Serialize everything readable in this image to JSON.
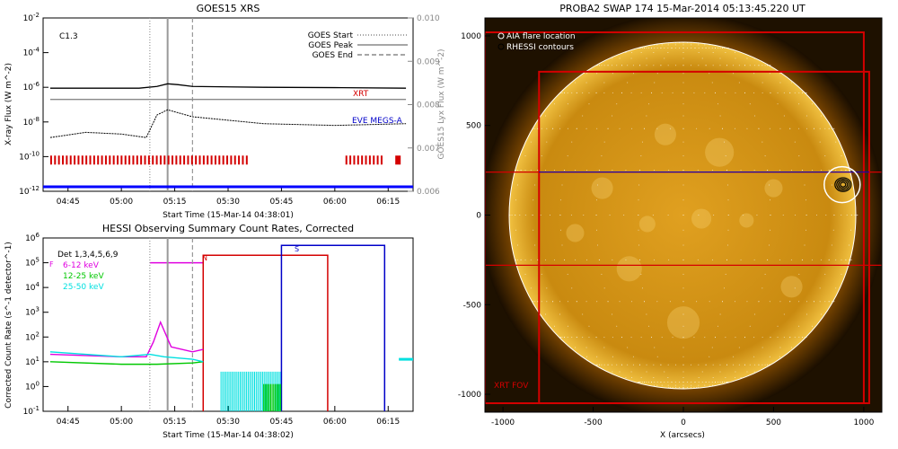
{
  "chart_data": [
    {
      "type": "line",
      "title": "GOES15 XRS",
      "xlabel": "Start Time (15-Mar-14 04:38:01)",
      "ylabel": "X-ray Flux (W m^-2)",
      "y2label": "GOES15 Lyx Flux (W m^-2)",
      "xticks": [
        "04:45",
        "05:00",
        "05:15",
        "05:30",
        "05:45",
        "06:00",
        "06:15"
      ],
      "yticks": [
        "10^-12",
        "10^-10",
        "10^-8",
        "10^-6",
        "10^-4",
        "10^-2"
      ],
      "y2ticks": [
        "0.006",
        "0.007",
        "0.008",
        "0.009",
        "0.010"
      ],
      "ylim_log10": [
        -12,
        -2
      ],
      "y2lim": [
        0.006,
        0.01
      ],
      "annotation": "C1.3",
      "legend": [
        {
          "label": "GOES Start",
          "style": "dotted"
        },
        {
          "label": "GOES Peak",
          "style": "solid"
        },
        {
          "label": "GOES End",
          "style": "dashed"
        }
      ],
      "legend_position": "top-right",
      "event_lines_time": [
        "05:08",
        "05:13",
        "05:20"
      ],
      "series_labels": [
        {
          "name": "XRT",
          "color": "#d40000"
        },
        {
          "name": "EVE MEGS-A",
          "color": "#0000c8"
        }
      ],
      "series": [
        {
          "name": "goes-long",
          "color": "#000000",
          "x": [
            "04:40",
            "05:05",
            "05:10",
            "05:13",
            "05:16",
            "05:20",
            "05:40",
            "06:00",
            "06:20"
          ],
          "log10_y": [
            -6.05,
            -6.05,
            -5.95,
            -5.8,
            -5.85,
            -5.95,
            -6.0,
            -6.02,
            -6.05
          ]
        },
        {
          "name": "lyman-alpha",
          "color": "#888888",
          "x": [
            "04:40",
            "06:20"
          ],
          "log10_y": [
            -6.7,
            -6.7
          ]
        },
        {
          "name": "goes-short",
          "color": "#000000",
          "x": [
            "04:40",
            "04:50",
            "05:00",
            "05:07",
            "05:10",
            "05:13",
            "05:20",
            "05:40",
            "06:00",
            "06:20"
          ],
          "log10_y": [
            -8.9,
            -8.6,
            -8.7,
            -8.9,
            -7.6,
            -7.3,
            -7.7,
            -8.1,
            -8.2,
            -8.1
          ]
        }
      ],
      "rhessi_coverage_bars_color": "#d40000",
      "baseline_color": "#0000ff"
    },
    {
      "type": "line",
      "title": "HESSI Observing Summary Count Rates, Corrected",
      "xlabel": "Start Time (15-Mar-14 04:38:02)",
      "ylabel": "Corrected Count Rate (s^-1 detector^-1)",
      "xticks": [
        "04:45",
        "05:00",
        "05:15",
        "05:30",
        "05:45",
        "06:00",
        "06:15"
      ],
      "yticks": [
        "10^-1",
        "10^0",
        "10^1",
        "10^2",
        "10^3",
        "10^4",
        "10^5",
        "10^6"
      ],
      "ylim_log10": [
        -1,
        6
      ],
      "legend_title": "Det 1,3,4,5,6,9",
      "legend_position": "top-left",
      "series": [
        {
          "name": "6-12 keV",
          "color": "#e000e0",
          "x": [
            "04:40",
            "05:00",
            "05:07",
            "05:09",
            "05:11",
            "05:14",
            "05:20",
            "05:23"
          ],
          "log10_y": [
            1.3,
            1.2,
            1.2,
            1.8,
            2.6,
            1.6,
            1.4,
            1.5
          ]
        },
        {
          "name": "12-25 keV",
          "color": "#00c800",
          "x": [
            "04:40",
            "05:00",
            "05:10",
            "05:20",
            "05:23"
          ],
          "log10_y": [
            1.0,
            0.9,
            0.9,
            0.95,
            1.0
          ]
        },
        {
          "name": "25-50 keV",
          "color": "#00e0e0",
          "x": [
            "04:40",
            "05:00",
            "05:08",
            "05:12",
            "05:20",
            "05:23"
          ],
          "log10_y": [
            1.4,
            1.2,
            1.3,
            1.2,
            1.1,
            1.0
          ]
        }
      ],
      "night_label": "N",
      "saa_label": "S",
      "attenuator_label": "F",
      "event_lines_time": [
        "05:08",
        "05:13",
        "05:20"
      ]
    },
    {
      "type": "heatmap",
      "title": "PROBA2 SWAP 174 15-Mar-2014 05:13:45.220 UT",
      "xlabel": "X (arcsecs)",
      "ylabel": "",
      "xticks": [
        "-1000",
        "-500",
        "0",
        "500",
        "1000"
      ],
      "yticks": [
        "-1000",
        "-500",
        "0",
        "500",
        "1000"
      ],
      "xlim": [
        -1100,
        1100
      ],
      "ylim": [
        -1100,
        1100
      ],
      "legend": [
        {
          "label": "AIA flare location",
          "color": "#ffffff"
        },
        {
          "label": "RHESSI contours",
          "color": "#000000"
        }
      ],
      "fov_label": "XRT FOV",
      "flare_location": [
        880,
        170
      ],
      "solar_radius": 965,
      "xrt_fov": {
        "x": [
          -800,
          1030
        ],
        "y": [
          -1050,
          800
        ]
      },
      "rhessi_fov": {
        "x": [
          -1100,
          1000
        ],
        "y": [
          -1050,
          1020
        ]
      },
      "eve_band": {
        "y": [
          -280,
          240
        ]
      }
    }
  ]
}
